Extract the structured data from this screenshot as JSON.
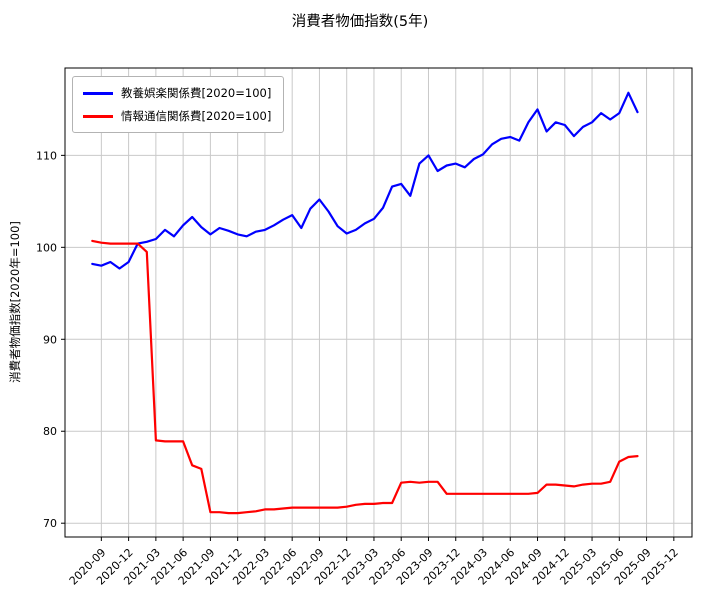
{
  "chart_data": {
    "type": "line",
    "title": "消費者物価指数(5年)",
    "xlabel": "",
    "ylabel": "消費者物価指数[2020年=100]",
    "grid": true,
    "legend_position": "upper left",
    "ylim": [
      68.5,
      119.5
    ],
    "y_ticks": [
      70,
      80,
      90,
      100,
      110
    ],
    "x_tick_labels": [
      "2020-09",
      "2020-12",
      "2021-03",
      "2021-06",
      "2021-09",
      "2021-12",
      "2022-03",
      "2022-06",
      "2022-09",
      "2022-12",
      "2023-03",
      "2023-06",
      "2023-09",
      "2023-12",
      "2024-03",
      "2024-06",
      "2024-09",
      "2024-12",
      "2025-03",
      "2025-06",
      "2025-09",
      "2025-12"
    ],
    "x": [
      "2020-08",
      "2020-09",
      "2020-10",
      "2020-11",
      "2020-12",
      "2021-01",
      "2021-02",
      "2021-03",
      "2021-04",
      "2021-05",
      "2021-06",
      "2021-07",
      "2021-08",
      "2021-09",
      "2021-10",
      "2021-11",
      "2021-12",
      "2022-01",
      "2022-02",
      "2022-03",
      "2022-04",
      "2022-05",
      "2022-06",
      "2022-07",
      "2022-08",
      "2022-09",
      "2022-10",
      "2022-11",
      "2022-12",
      "2023-01",
      "2023-02",
      "2023-03",
      "2023-04",
      "2023-05",
      "2023-06",
      "2023-07",
      "2023-08",
      "2023-09",
      "2023-10",
      "2023-11",
      "2023-12",
      "2024-01",
      "2024-02",
      "2024-03",
      "2024-04",
      "2024-05",
      "2024-06",
      "2024-07",
      "2024-08",
      "2024-09",
      "2024-10",
      "2024-11",
      "2024-12",
      "2025-01",
      "2025-02",
      "2025-03",
      "2025-04",
      "2025-05",
      "2025-06",
      "2025-07",
      "2025-08"
    ],
    "series": [
      {
        "name": "教養娯楽関係費[2020=100]",
        "color": "#0000ff",
        "values": [
          98.2,
          98.0,
          98.4,
          97.7,
          98.4,
          100.4,
          100.6,
          100.9,
          101.9,
          101.2,
          102.4,
          103.3,
          102.2,
          101.4,
          102.1,
          101.8,
          101.4,
          101.2,
          101.7,
          101.9,
          102.4,
          103.0,
          103.5,
          102.1,
          104.2,
          105.2,
          103.9,
          102.3,
          101.5,
          101.9,
          102.6,
          103.1,
          104.3,
          106.6,
          106.9,
          105.6,
          109.1,
          110.0,
          108.3,
          108.9,
          109.1,
          108.7,
          109.6,
          110.1,
          111.2,
          111.8,
          112.0,
          111.6,
          113.6,
          115.0,
          112.6,
          113.6,
          113.3,
          112.1,
          113.1,
          113.6,
          114.6,
          113.9,
          114.6,
          116.8,
          114.7
        ]
      },
      {
        "name": "情報通信関係費[2020=100]",
        "color": "#ff0000",
        "values": [
          100.7,
          100.5,
          100.4,
          100.4,
          100.4,
          100.4,
          99.5,
          79.0,
          78.9,
          78.9,
          78.9,
          76.3,
          75.9,
          71.2,
          71.2,
          71.1,
          71.1,
          71.2,
          71.3,
          71.5,
          71.5,
          71.6,
          71.7,
          71.7,
          71.7,
          71.7,
          71.7,
          71.7,
          71.8,
          72.0,
          72.1,
          72.1,
          72.2,
          72.2,
          74.4,
          74.5,
          74.4,
          74.5,
          74.5,
          73.2,
          73.2,
          73.2,
          73.2,
          73.2,
          73.2,
          73.2,
          73.2,
          73.2,
          73.2,
          73.3,
          74.2,
          74.2,
          74.1,
          74.0,
          74.2,
          74.3,
          74.3,
          74.5,
          76.7,
          77.2,
          77.3
        ]
      }
    ]
  }
}
